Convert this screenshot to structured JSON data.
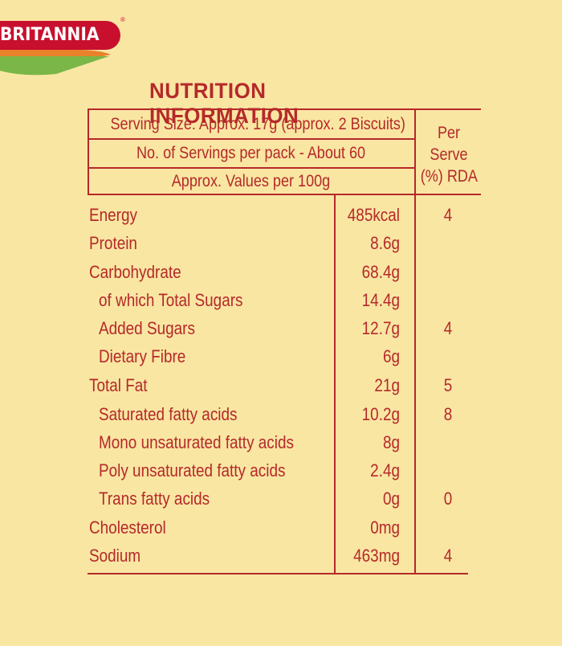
{
  "brand": {
    "name": "BRITANNIA",
    "reg_mark": "®"
  },
  "title": "NUTRITION INFORMATION",
  "header": {
    "serving_size": "Serving Size: Approx. 17g (approx. 2 Biscuits)",
    "servings_per_pack": "No. of Servings per pack - About 60",
    "values_per": "Approx. Values per 100g",
    "rda_line1": "Per",
    "rda_line2": "Serve",
    "rda_line3": "(%) RDA"
  },
  "rows": [
    {
      "nutrient": "Energy",
      "value": "485kcal",
      "rda": "4"
    },
    {
      "nutrient": "Protein",
      "value": "8.6g",
      "rda": ""
    },
    {
      "nutrient": "Carbohydrate",
      "value": "68.4g",
      "rda": ""
    },
    {
      "nutrient": "of which Total Sugars",
      "value": "14.4g",
      "rda": ""
    },
    {
      "nutrient": "Added Sugars",
      "value": "12.7g",
      "rda": "4"
    },
    {
      "nutrient": "Dietary Fibre",
      "value": "6g",
      "rda": ""
    },
    {
      "nutrient": "Total Fat",
      "value": "21g",
      "rda": "5"
    },
    {
      "nutrient": "Saturated fatty acids",
      "value": "10.2g",
      "rda": "8"
    },
    {
      "nutrient": "Mono unsaturated fatty acids",
      "value": "8g",
      "rda": ""
    },
    {
      "nutrient": "Poly unsaturated fatty acids",
      "value": "2.4g",
      "rda": ""
    },
    {
      "nutrient": "Trans fatty acids",
      "value": "0g",
      "rda": "0"
    },
    {
      "nutrient": "Cholesterol",
      "value": "0mg",
      "rda": ""
    },
    {
      "nutrient": "Sodium",
      "value": "463mg",
      "rda": "4"
    }
  ],
  "colors": {
    "background": "#f9e6a2",
    "text": "#b5292a",
    "brand_red": "#c8102e",
    "brand_green": "#7ab648"
  }
}
